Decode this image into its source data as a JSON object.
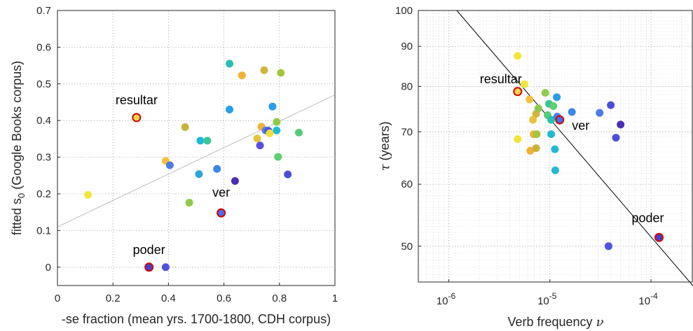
{
  "chart_data": [
    {
      "type": "scatter",
      "xlabel": "-se fraction (mean yrs. 1700-1800, CDH corpus)",
      "ylabel_main": "fitted s",
      "ylabel_sub": "0",
      "ylabel_rest": " (Google Books corpus)",
      "xlim": [
        0,
        1
      ],
      "ylim": [
        -0.05,
        0.7
      ],
      "xticks": [
        0,
        0.2,
        0.4,
        0.6,
        0.8,
        1
      ],
      "xtick_labels": [
        "0",
        "0.2",
        "0.4",
        "0.6",
        "0.8",
        "1"
      ],
      "yticks": [
        0,
        0.1,
        0.2,
        0.3,
        0.4,
        0.5,
        0.6,
        0.7
      ],
      "ytick_labels": [
        "0",
        "0.1",
        "0.2",
        "0.3",
        "0.4",
        "0.5",
        "0.6",
        "0.7"
      ],
      "grid": "dotted",
      "fit_line": {
        "x": [
          0,
          1
        ],
        "y": [
          0.11,
          0.47
        ],
        "color": "#bdbdbd"
      },
      "points": [
        {
          "x": 0.11,
          "y": 0.197,
          "color": "#f2e53a"
        },
        {
          "x": 0.39,
          "y": 0.29,
          "color": "#f5c03a"
        },
        {
          "x": 0.405,
          "y": 0.278,
          "color": "#4d7be6"
        },
        {
          "x": 0.39,
          "y": 0.0,
          "color": "#4e52e0"
        },
        {
          "x": 0.46,
          "y": 0.382,
          "color": "#c9b23a"
        },
        {
          "x": 0.475,
          "y": 0.176,
          "color": "#8fca4e"
        },
        {
          "x": 0.51,
          "y": 0.254,
          "color": "#2aa6dd"
        },
        {
          "x": 0.515,
          "y": 0.345,
          "color": "#21b8d6"
        },
        {
          "x": 0.54,
          "y": 0.345,
          "color": "#3bc49a"
        },
        {
          "x": 0.575,
          "y": 0.268,
          "color": "#3a86ea"
        },
        {
          "x": 0.62,
          "y": 0.555,
          "color": "#26bfae"
        },
        {
          "x": 0.62,
          "y": 0.43,
          "color": "#2a9ee6"
        },
        {
          "x": 0.64,
          "y": 0.235,
          "color": "#4a2fb5"
        },
        {
          "x": 0.665,
          "y": 0.523,
          "color": "#f3b035"
        },
        {
          "x": 0.72,
          "y": 0.351,
          "color": "#e8c23a"
        },
        {
          "x": 0.73,
          "y": 0.332,
          "color": "#5a4ee0"
        },
        {
          "x": 0.735,
          "y": 0.383,
          "color": "#f3b035"
        },
        {
          "x": 0.745,
          "y": 0.537,
          "color": "#d2b43a"
        },
        {
          "x": 0.75,
          "y": 0.373,
          "color": "#5a7fe6"
        },
        {
          "x": 0.76,
          "y": 0.372,
          "color": "#4657da"
        },
        {
          "x": 0.765,
          "y": 0.365,
          "color": "#f0de3a"
        },
        {
          "x": 0.775,
          "y": 0.438,
          "color": "#2a9ee6"
        },
        {
          "x": 0.79,
          "y": 0.396,
          "color": "#8fca4e"
        },
        {
          "x": 0.79,
          "y": 0.373,
          "color": "#1fbcd0"
        },
        {
          "x": 0.795,
          "y": 0.301,
          "color": "#5ccf6e"
        },
        {
          "x": 0.805,
          "y": 0.53,
          "color": "#a5c53a"
        },
        {
          "x": 0.83,
          "y": 0.253,
          "color": "#4a4fd8"
        },
        {
          "x": 0.87,
          "y": 0.367,
          "color": "#55cc76"
        }
      ],
      "highlighted": [
        {
          "x": 0.285,
          "y": 0.408,
          "fill": "#f5d84a",
          "label": "resultar"
        },
        {
          "x": 0.59,
          "y": 0.148,
          "fill": "#4a6fe8",
          "label": "ver"
        },
        {
          "x": 0.33,
          "y": 0.0,
          "fill": "#4a3fc8",
          "label": "poder"
        }
      ]
    },
    {
      "type": "scatter",
      "xlabel_main": "Verb frequency ",
      "xlabel_symbol": "ν",
      "ylabel_symbol": "τ",
      "ylabel_rest": " (years)",
      "xscale": "log",
      "yscale": "log",
      "xlim": [
        5e-07,
        0.00026
      ],
      "ylim": [
        45,
        100
      ],
      "xticks": [
        1e-06,
        1e-05,
        0.0001
      ],
      "xtick_base": [
        "10",
        "10",
        "10"
      ],
      "xtick_exp": [
        "-6",
        "-5",
        "-4"
      ],
      "yticks": [
        50,
        60,
        70,
        80,
        90,
        100
      ],
      "ytick_labels": [
        "50",
        "60",
        "70",
        "80",
        "90",
        "100"
      ],
      "grid": "dotted",
      "fit_line": {
        "x": [
          1.2e-06,
          0.00026
        ],
        "y": [
          100,
          44.5
        ],
        "color": "#000000"
      },
      "points": [
        {
          "x": 4.8e-06,
          "y": 87.5,
          "color": "#f2e53a"
        },
        {
          "x": 5.6e-06,
          "y": 80.5,
          "color": "#f2e53a"
        },
        {
          "x": 6.3e-06,
          "y": 77.0,
          "color": "#f5c03a"
        },
        {
          "x": 7.3e-06,
          "y": 73.8,
          "color": "#d2b43a"
        },
        {
          "x": 7.7e-06,
          "y": 75.0,
          "color": "#8fca4e"
        },
        {
          "x": 9e-06,
          "y": 78.5,
          "color": "#8fca4e"
        },
        {
          "x": 9.5e-06,
          "y": 73.5,
          "color": "#55cc76"
        },
        {
          "x": 9.8e-06,
          "y": 76.0,
          "color": "#3bc49a"
        },
        {
          "x": 1.03e-05,
          "y": 72.5,
          "color": "#26bfae"
        },
        {
          "x": 1.08e-05,
          "y": 75.5,
          "color": "#5ccf6e"
        },
        {
          "x": 1.17e-05,
          "y": 77.5,
          "color": "#2a9ee6"
        },
        {
          "x": 1.18e-05,
          "y": 73.2,
          "color": "#4a7fe8"
        },
        {
          "x": 6.8e-06,
          "y": 72.5,
          "color": "#e8c23a"
        },
        {
          "x": 6.9e-06,
          "y": 69.5,
          "color": "#f3b035"
        },
        {
          "x": 7.4e-06,
          "y": 69.5,
          "color": "#a5c53a"
        },
        {
          "x": 1.03e-05,
          "y": 69.5,
          "color": "#1fbcd0"
        },
        {
          "x": 4.8e-06,
          "y": 68.5,
          "color": "#f2e53a"
        },
        {
          "x": 6.4e-06,
          "y": 66.2,
          "color": "#f3b035"
        },
        {
          "x": 7.3e-06,
          "y": 66.7,
          "color": "#c9b23a"
        },
        {
          "x": 1.12e-05,
          "y": 66.5,
          "color": "#21b8d6"
        },
        {
          "x": 1.13e-05,
          "y": 62.5,
          "color": "#21b8d6"
        },
        {
          "x": 1.65e-05,
          "y": 74.2,
          "color": "#3a86ea"
        },
        {
          "x": 3.1e-05,
          "y": 74.0,
          "color": "#4d7be6"
        },
        {
          "x": 4e-05,
          "y": 75.7,
          "color": "#4a4fd8"
        },
        {
          "x": 5e-05,
          "y": 71.5,
          "color": "#4a2fb5"
        },
        {
          "x": 4.5e-05,
          "y": 68.8,
          "color": "#4a4fd8"
        },
        {
          "x": 3.8e-05,
          "y": 50.0,
          "color": "#4e52e0"
        }
      ],
      "highlighted": [
        {
          "x": 4.8e-06,
          "y": 78.8,
          "fill": "#f5d84a",
          "label": "resultar"
        },
        {
          "x": 1.25e-05,
          "y": 72.5,
          "fill": "#4a6fe8",
          "label": "ver"
        },
        {
          "x": 0.00012,
          "y": 51.3,
          "fill": "#4a3fc8",
          "label": "poder"
        }
      ]
    }
  ]
}
